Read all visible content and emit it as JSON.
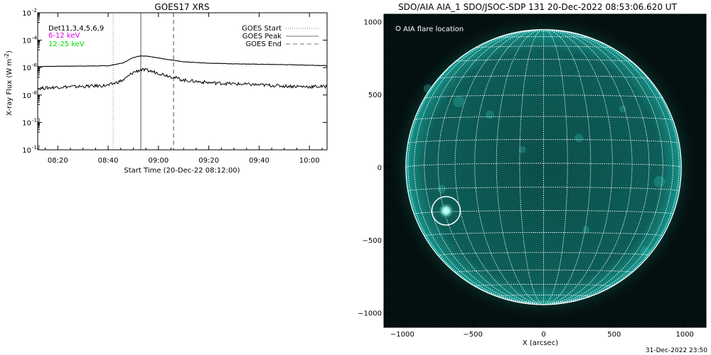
{
  "chart_data": [
    {
      "type": "line",
      "title": "GOES17 XRS",
      "xlabel": "Start Time (20-Dec-22 08:12:00)",
      "ylabel_prefix": "X-ray Flux (W m",
      "ylabel_exp": "-2",
      "ylabel_suffix": ")",
      "y_scale": "log",
      "xlim": [
        "08:12",
        "10:07"
      ],
      "ylim": [
        1e-12,
        0.01
      ],
      "x_ticks": [
        {
          "t": "08:20",
          "label": "08:20"
        },
        {
          "t": "08:40",
          "label": "08:40"
        },
        {
          "t": "09:00",
          "label": "09:00"
        },
        {
          "t": "09:20",
          "label": "09:20"
        },
        {
          "t": "09:40",
          "label": "09:40"
        },
        {
          "t": "10:00",
          "label": "10:00"
        }
      ],
      "y_ticks": [
        {
          "exp": -2,
          "base": "10",
          "sup": "-2"
        },
        {
          "exp": -4,
          "base": "10",
          "sup": "-4"
        },
        {
          "exp": -6,
          "base": "10",
          "sup": "-6"
        },
        {
          "exp": -8,
          "base": "10",
          "sup": "-8"
        },
        {
          "exp": -10,
          "base": "10",
          "sup": "-10"
        },
        {
          "exp": -12,
          "base": "10",
          "sup": "-12"
        }
      ],
      "instrument_label": "Det11,3,4,5,6,9",
      "energy_labels": [
        {
          "text": "6-12 keV",
          "color": "#e000e0"
        },
        {
          "text": "12-25 keV",
          "color": "#00dd00"
        }
      ],
      "markers": [
        {
          "label": "GOES Start",
          "time": "08:42",
          "style": "dotted"
        },
        {
          "label": "GOES Peak",
          "time": "08:53",
          "style": "solid"
        },
        {
          "label": "GOES End",
          "time": "09:06",
          "style": "dashed"
        }
      ],
      "series": [
        {
          "color": "#000000",
          "x": [
            "08:12",
            "08:20",
            "08:30",
            "08:40",
            "08:46",
            "08:50",
            "08:53",
            "08:56",
            "09:00",
            "09:06",
            "09:10",
            "09:20",
            "09:30",
            "09:40",
            "09:50",
            "10:00",
            "10:07"
          ],
          "values": [
            1.2e-06,
            1.25e-06,
            1.3e-06,
            1.35e-06,
            2.2e-06,
            5.5e-06,
            7.2e-06,
            6.8e-06,
            5e-06,
            3.4e-06,
            2.6e-06,
            2.1e-06,
            1.9e-06,
            1.75e-06,
            1.65e-06,
            1.5e-06,
            1.4e-06
          ]
        },
        {
          "color": "#000000",
          "x": [
            "08:12",
            "08:20",
            "08:30",
            "08:40",
            "08:46",
            "08:50",
            "08:53",
            "08:56",
            "09:00",
            "09:06",
            "09:10",
            "09:20",
            "09:30",
            "09:40",
            "09:50",
            "10:00",
            "10:07"
          ],
          "values": [
            3e-08,
            3.8e-08,
            4.2e-08,
            5e-08,
            1.2e-07,
            4.5e-07,
            7e-07,
            6e-07,
            4e-07,
            2e-07,
            1.2e-07,
            8e-08,
            6.5e-08,
            5.5e-08,
            4.5e-08,
            4e-08,
            4.2e-08
          ]
        }
      ]
    },
    {
      "type": "image",
      "title": "SDO/AIA AIA_1 SDO/JSOC-SDP 131 20-Dec-2022 08:53:06.620 UT",
      "xlabel": "X (arcsec)",
      "ylabel": "",
      "xlim": [
        -1130,
        1150
      ],
      "ylim": [
        -1100,
        1050
      ],
      "x_ticks": [
        -1000,
        -500,
        0,
        500,
        1000
      ],
      "y_ticks": [
        1000,
        500,
        0,
        -500,
        -1000
      ],
      "x_tick_labels": [
        "−1000",
        "−500",
        "0",
        "500",
        "1000"
      ],
      "y_tick_labels": [
        "1000",
        "500",
        "0",
        "−500",
        "−1000"
      ],
      "legend": "AIA flare location",
      "legend_placement": "top-left",
      "flare_location": [
        -690,
        -300
      ],
      "solar_radius_arcsec": 975,
      "grid_step_deg": 10,
      "image_colors": {
        "background": "#04100f",
        "disk": "#0b4e49",
        "limb": "#0fa098",
        "bright": "#8ef3e8"
      }
    }
  ],
  "footer": {
    "timestamp": "31-Dec-2022 23:50"
  }
}
